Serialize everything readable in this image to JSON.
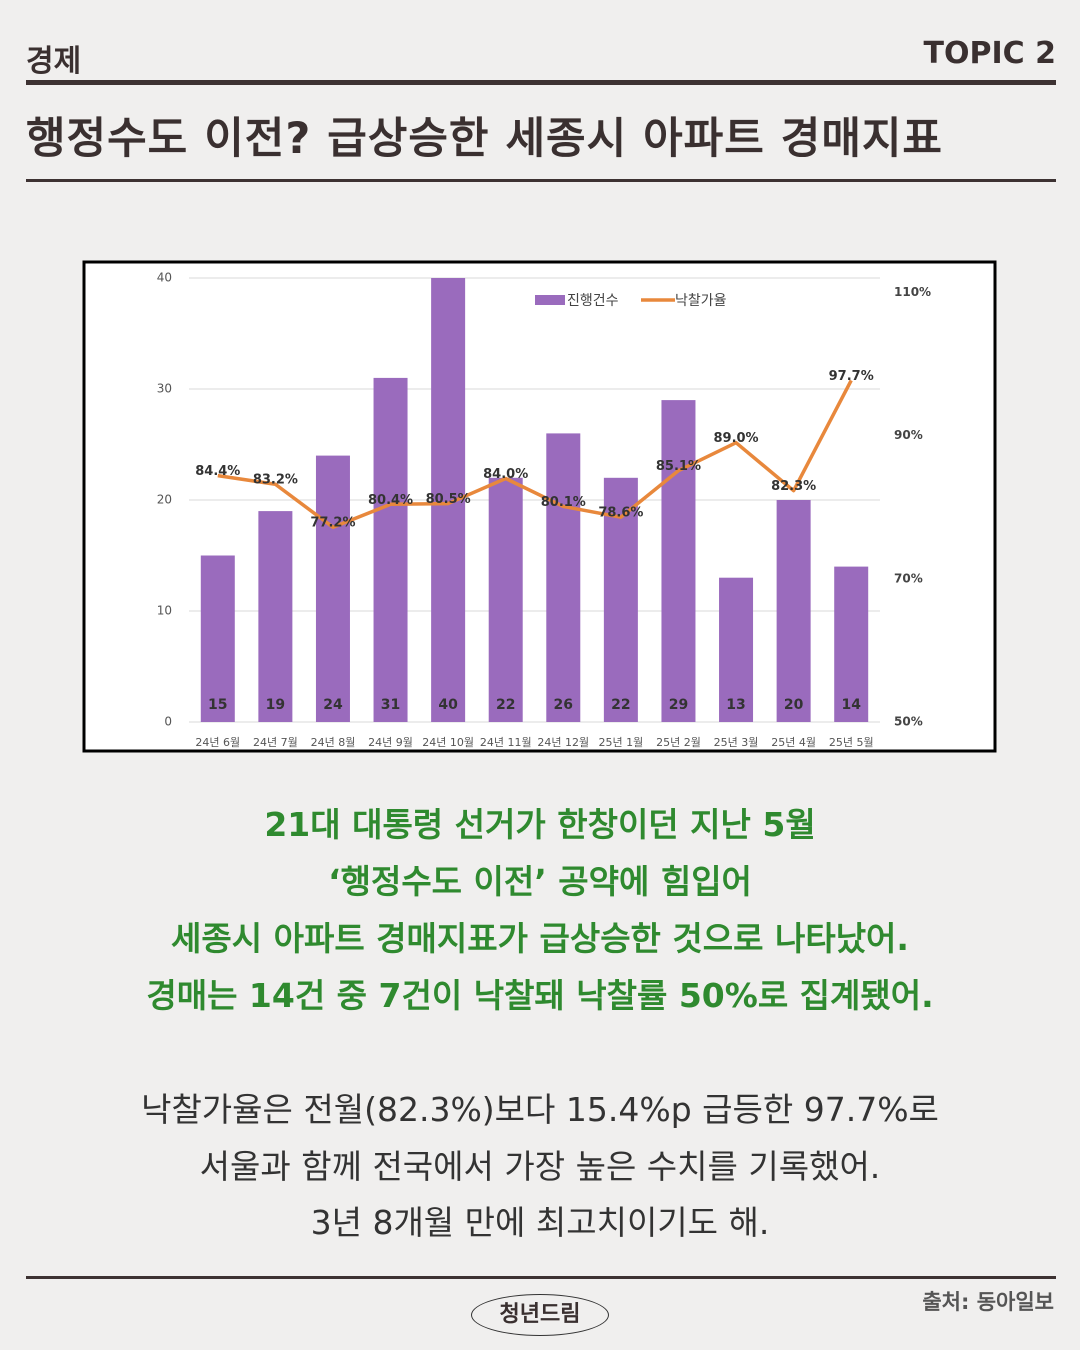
{
  "header": {
    "category": "경제",
    "topic": "TOPIC 2",
    "title": "행정수도 이전? 급상승한 세종시 아파트 경매지표"
  },
  "chart_data": {
    "type": "combo",
    "categories": [
      "24년 6월",
      "24년 7월",
      "24년 8월",
      "24년 9월",
      "24년 10월",
      "24년 11월",
      "24년 12월",
      "25년 1월",
      "25년 2월",
      "25년 3월",
      "25년 4월",
      "25년 5월"
    ],
    "series": [
      {
        "name": "진행건수",
        "type": "bar",
        "color": "#9a6bbd",
        "values": [
          15,
          19,
          24,
          31,
          40,
          22,
          26,
          22,
          29,
          13,
          20,
          14
        ]
      },
      {
        "name": "낙찰가율",
        "type": "line",
        "axis": "y2",
        "color": "#e8883c",
        "values": [
          84.4,
          83.2,
          77.2,
          80.4,
          80.5,
          84.0,
          80.1,
          78.6,
          85.1,
          89.0,
          82.3,
          97.7
        ],
        "value_labels": [
          "84.4%",
          "83.2%",
          "77.2%",
          "80.4%",
          "80.5%",
          "84.0%",
          "80.1%",
          "78.6%",
          "85.1%",
          "89.0%",
          "82.3%",
          "97.7%"
        ]
      }
    ],
    "ylim": [
      0,
      40
    ],
    "yticks": [
      0,
      10,
      20,
      30,
      40
    ],
    "y2lim": [
      50,
      112
    ],
    "y2ticks": [
      {
        "value": 50,
        "label": "50%"
      },
      {
        "value": 70,
        "label": "70%"
      },
      {
        "value": 90,
        "label": "90%"
      },
      {
        "value": 110,
        "label": "110%"
      }
    ],
    "grid": true,
    "legend": "top"
  },
  "highlight": {
    "lines": [
      "21대 대통령 선거가 한창이던 지난 5월",
      "‘행정수도 이전’ 공약에 힘입어",
      "세종시 아파트 경매지표가 급상승한 것으로 나타났어.",
      "경매는 14건 중 7건이 낙찰돼 낙찰률 50%로 집계됐어."
    ]
  },
  "body": {
    "lines": [
      "낙찰가율은 전월(82.3%)보다 15.4%p 급등한 97.7%로",
      "서울과 함께 전국에서 가장 높은 수치를 기록했어.",
      "3년 8개월 만에 최고치이기도 해."
    ]
  },
  "footer": {
    "brand": "청년드림",
    "source": "출처: 동아일보"
  }
}
